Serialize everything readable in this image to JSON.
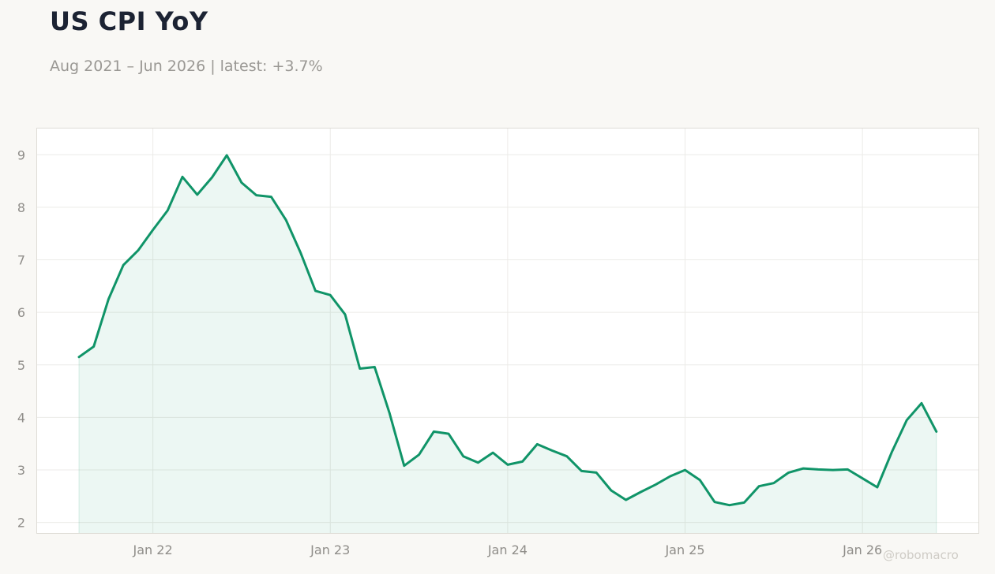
{
  "header": {
    "title": "US CPI YoY",
    "subtitle": "Aug 2021 – Jun 2026 | latest: +3.7%",
    "watermark": "@robomacro"
  },
  "colors": {
    "line": "#109468",
    "fill": "#109468",
    "grid": "#ecebe8",
    "background": "#f9f8f5"
  },
  "chart_data": {
    "type": "area",
    "title": "US CPI YoY",
    "subtitle": "Aug 2021 – Jun 2026 | latest: +3.7%",
    "xlabel": "",
    "ylabel": "",
    "ylim": [
      1.8,
      9.5
    ],
    "yticks": [
      2,
      3,
      4,
      5,
      6,
      7,
      8,
      9
    ],
    "xticks": [
      {
        "label": "Jan 22",
        "date": "2022-01"
      },
      {
        "label": "Jan 23",
        "date": "2023-01"
      },
      {
        "label": "Jan 24",
        "date": "2024-01"
      },
      {
        "label": "Jan 25",
        "date": "2025-01"
      },
      {
        "label": "Jan 26",
        "date": "2026-01"
      }
    ],
    "grid": true,
    "x": [
      "2021-08",
      "2021-09",
      "2021-10",
      "2021-11",
      "2021-12",
      "2022-01",
      "2022-02",
      "2022-03",
      "2022-04",
      "2022-05",
      "2022-06",
      "2022-07",
      "2022-08",
      "2022-09",
      "2022-10",
      "2022-11",
      "2022-12",
      "2023-01",
      "2023-02",
      "2023-03",
      "2023-04",
      "2023-05",
      "2023-06",
      "2023-07",
      "2023-08",
      "2023-09",
      "2023-10",
      "2023-11",
      "2023-12",
      "2024-01",
      "2024-02",
      "2024-03",
      "2024-04",
      "2024-05",
      "2024-06",
      "2024-07",
      "2024-08",
      "2024-09",
      "2024-10",
      "2024-11",
      "2024-12",
      "2025-01",
      "2025-02",
      "2025-03",
      "2025-04",
      "2025-05",
      "2025-06",
      "2025-07",
      "2025-08",
      "2025-09",
      "2025-10",
      "2025-11",
      "2025-12",
      "2026-01",
      "2026-02",
      "2026-03",
      "2026-04",
      "2026-05",
      "2026-06"
    ],
    "series": [
      {
        "values": [
          5.15,
          5.35,
          6.25,
          6.9,
          7.18,
          7.57,
          7.94,
          8.58,
          8.24,
          8.57,
          8.99,
          8.47,
          8.23,
          8.2,
          7.76,
          7.13,
          6.41,
          6.33,
          5.96,
          4.93,
          4.96,
          4.09,
          3.08,
          3.29,
          3.73,
          3.69,
          3.26,
          3.14,
          3.33,
          3.1,
          3.16,
          3.49,
          3.37,
          3.26,
          2.98,
          2.95,
          2.61,
          2.43,
          2.58,
          2.72,
          2.88,
          3.0,
          2.81,
          2.39,
          2.33,
          2.38,
          2.69,
          2.75,
          2.95,
          3.03,
          3.01,
          3.0,
          3.01,
          2.84,
          2.67,
          3.35,
          3.95,
          4.27,
          3.73
        ]
      }
    ]
  }
}
